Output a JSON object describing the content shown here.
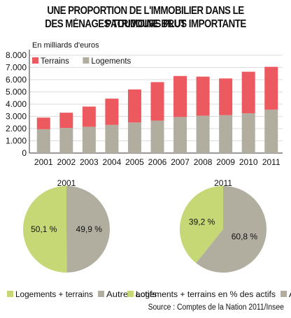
{
  "title_line1": "UNE PROPORTION DE L'IMMOBILIER DANS LE PATRIMOINE BRUT",
  "title_line2": "DES MÉNAGES TOUJOURS PLUS IMPORTANTE",
  "source": "Source : Comptes de la Nation 2011/Insee",
  "colors": {
    "red": "#ec5a5f",
    "grey": "#b2ae9f",
    "green": "#c6d876",
    "grid": "#cfcfcf"
  },
  "chart_data": [
    {
      "type": "bar",
      "stacked": true,
      "unit_label": "En milliards d'euros",
      "categories": [
        "2001",
        "2002",
        "2003",
        "2004",
        "2005",
        "2006",
        "2007",
        "2008",
        "2009",
        "2010",
        "2011"
      ],
      "series": [
        {
          "name": "Logements",
          "color": "#b2ae9f",
          "values": [
            1950,
            2050,
            2150,
            2300,
            2500,
            2650,
            2950,
            3050,
            3100,
            3250,
            3550
          ]
        },
        {
          "name": "Terrains",
          "color": "#ec5a5f",
          "values": [
            950,
            1250,
            1650,
            2150,
            2700,
            3150,
            3350,
            3200,
            3000,
            3400,
            3500
          ]
        }
      ],
      "legend_order": [
        "Terrains",
        "Logements"
      ],
      "yticks": [
        "0",
        "1.000",
        "2.000",
        "3.000",
        "4.000",
        "5.000",
        "6.000",
        "7.000",
        "8.000"
      ],
      "ylim": [
        0,
        8000
      ],
      "grid": true,
      "legend": "top-left"
    },
    {
      "type": "pie",
      "title": "2001",
      "slices": [
        {
          "name": "Logements + terrains",
          "value": 50.1,
          "label": "50,1 %",
          "color": "#c6d876"
        },
        {
          "name": "Autres actifs",
          "value": 49.9,
          "label": "49,9 %",
          "color": "#b2ae9f"
        }
      ]
    },
    {
      "type": "pie",
      "title": "2011",
      "slices": [
        {
          "name": "Logements + terrains en % des actifs",
          "value": 39.2,
          "label": "39,2 %",
          "color": "#c6d876"
        },
        {
          "name": "Autres actifs",
          "value": 60.8,
          "label": "60,8 %",
          "color": "#b2ae9f"
        }
      ]
    }
  ]
}
